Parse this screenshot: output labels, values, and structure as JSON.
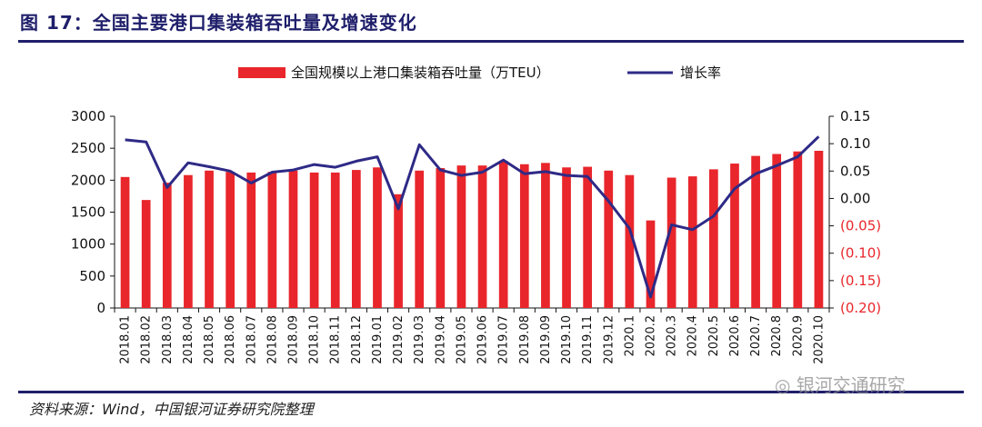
{
  "title": "图 17：全国主要港口集装箱吞吐量及增速变化",
  "source": "资料来源：Wind，中国银河证券研究院整理",
  "watermark": "银河交通研究",
  "chart_data": {
    "type": "bar",
    "categories": [
      "2018.01",
      "2018.02",
      "2018.03",
      "2018.04",
      "2018.05",
      "2018.06",
      "2018.07",
      "2018.08",
      "2018.09",
      "2018.10",
      "2018.11",
      "2018.12",
      "2019.01",
      "2019.02",
      "2019.03",
      "2019.04",
      "2019.05",
      "2019.06",
      "2019.07",
      "2019.08",
      "2019.09",
      "2019.10",
      "2019.11",
      "2019.12",
      "2020.1",
      "2020.2",
      "2020.3",
      "2020.4",
      "2020.5",
      "2020.6",
      "2020.7",
      "2020.8",
      "2020.9",
      "2020.10"
    ],
    "series": [
      {
        "name": "全国规模以上港口集装箱吞吐量（万TEU）",
        "type": "bar",
        "axis": "left",
        "color": "#e8262b",
        "values": [
          2050,
          1690,
          1960,
          2080,
          2150,
          2130,
          2120,
          2130,
          2150,
          2120,
          2120,
          2160,
          2200,
          1780,
          2150,
          2190,
          2230,
          2230,
          2300,
          2250,
          2270,
          2200,
          2210,
          2150,
          2080,
          1370,
          2040,
          2060,
          2170,
          2260,
          2380,
          2410,
          2450,
          2460
        ]
      },
      {
        "name": "增长率",
        "type": "line",
        "axis": "right",
        "color": "#2e2a86",
        "values": [
          0.107,
          0.103,
          0.02,
          0.065,
          0.058,
          0.05,
          0.028,
          0.048,
          0.052,
          0.062,
          0.057,
          0.068,
          0.076,
          -0.019,
          0.098,
          0.052,
          0.042,
          0.048,
          0.07,
          0.045,
          0.049,
          0.042,
          0.04,
          -0.005,
          -0.055,
          -0.18,
          -0.048,
          -0.057,
          -0.032,
          0.018,
          0.045,
          0.06,
          0.076,
          0.113
        ]
      }
    ],
    "y_left": {
      "min": 0,
      "max": 3000,
      "ticks": [
        0,
        500,
        1000,
        1500,
        2000,
        2500,
        3000
      ]
    },
    "y_right": {
      "min": -0.2,
      "max": 0.15,
      "ticks": [
        {
          "value": 0.15,
          "label": "0.15",
          "color": "#111111"
        },
        {
          "value": 0.1,
          "label": "0.10",
          "color": "#111111"
        },
        {
          "value": 0.05,
          "label": "0.05",
          "color": "#111111"
        },
        {
          "value": 0.0,
          "label": "0.00",
          "color": "#111111"
        },
        {
          "value": -0.05,
          "label": "(0.05)",
          "color": "#e8262b"
        },
        {
          "value": -0.1,
          "label": "(0.10)",
          "color": "#e8262b"
        },
        {
          "value": -0.15,
          "label": "(0.15)",
          "color": "#e8262b"
        },
        {
          "value": -0.2,
          "label": "(0.20)",
          "color": "#e8262b"
        }
      ]
    },
    "legend": "top",
    "grid": false
  }
}
